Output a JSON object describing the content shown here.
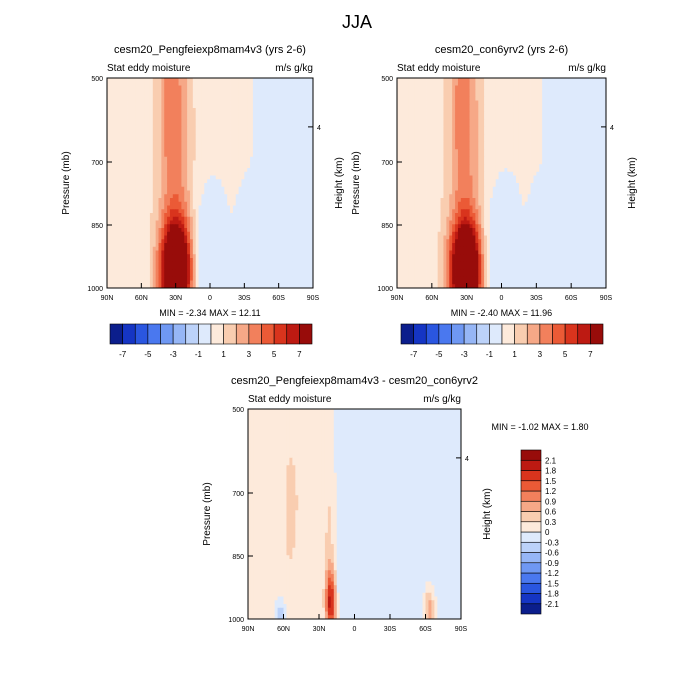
{
  "main_title": "JJA",
  "chart_data": [
    {
      "type": "heatmap",
      "title": "cesm20_Pengfeiexp8mam4v3 (yrs 2-6)",
      "left_string": "Stat eddy moisture",
      "right_string": "m/s g/kg",
      "ylabel": "Pressure (mb)",
      "ylabel_right": "Height (km)",
      "y_ticks": [
        "500",
        "700",
        "850",
        "1000"
      ],
      "right_ticks": [
        "4"
      ],
      "x_ticks": [
        "90N",
        "60N",
        "30N",
        "0",
        "30S",
        "60S",
        "90S"
      ],
      "stats": "MIN =  -2.34  MAX =  12.11",
      "min": -2.34,
      "max": 12.11,
      "levels": [
        -8,
        -7,
        -6,
        -5,
        -4,
        -3,
        -2,
        -1,
        0,
        1,
        2,
        3,
        4,
        5,
        6,
        7,
        8
      ],
      "colorbar_labels": [
        "-7",
        "-5",
        "-3",
        "-1",
        "1",
        "3",
        "5",
        "7"
      ],
      "features": [
        {
          "lat": 30,
          "p": 960,
          "dlat": 9,
          "dp": 80,
          "value": 12.11
        },
        {
          "lat": 28,
          "p": 650,
          "dlat": 10,
          "dp": 320,
          "value": 2.8
        },
        {
          "lat": 36,
          "p": 560,
          "dlat": 6,
          "dp": 170,
          "value": 1.3
        },
        {
          "lat": 48,
          "p": 720,
          "dlat": 12,
          "dp": 500,
          "value": 0.7
        },
        {
          "lat": 8,
          "p": 930,
          "dlat": 6,
          "dp": 90,
          "value": -1.3
        },
        {
          "lat": -35,
          "p": 980,
          "dlat": 5,
          "dp": 45,
          "value": -0.9
        },
        {
          "lat": -80,
          "p": 760,
          "dlat": 7,
          "dp": 360,
          "value": -0.7
        }
      ]
    },
    {
      "type": "heatmap",
      "title": "cesm20_con6yrv2 (yrs 2-6)",
      "left_string": "Stat eddy moisture",
      "right_string": "m/s g/kg",
      "ylabel": "Pressure (mb)",
      "ylabel_right": "Height (km)",
      "y_ticks": [
        "500",
        "700",
        "850",
        "1000"
      ],
      "right_ticks": [
        "4"
      ],
      "x_ticks": [
        "90N",
        "60N",
        "30N",
        "0",
        "30S",
        "60S",
        "90S"
      ],
      "stats": "MIN =  -2.40  MAX =  11.96",
      "min": -2.4,
      "max": 11.96,
      "levels": [
        -8,
        -7,
        -6,
        -5,
        -4,
        -3,
        -2,
        -1,
        0,
        1,
        2,
        3,
        4,
        5,
        6,
        7,
        8
      ],
      "colorbar_labels": [
        "-7",
        "-5",
        "-3",
        "-1",
        "1",
        "3",
        "5",
        "7"
      ],
      "features": [
        {
          "lat": 31,
          "p": 960,
          "dlat": 9,
          "dp": 80,
          "value": 11.96
        },
        {
          "lat": 29,
          "p": 650,
          "dlat": 10,
          "dp": 320,
          "value": 2.7
        },
        {
          "lat": 36,
          "p": 560,
          "dlat": 6,
          "dp": 170,
          "value": 1.2
        },
        {
          "lat": 50,
          "p": 720,
          "dlat": 12,
          "dp": 500,
          "value": 0.7
        },
        {
          "lat": 8,
          "p": 930,
          "dlat": 6,
          "dp": 90,
          "value": -1.4
        },
        {
          "lat": -35,
          "p": 980,
          "dlat": 5,
          "dp": 45,
          "value": -0.9
        },
        {
          "lat": -80,
          "p": 760,
          "dlat": 7,
          "dp": 360,
          "value": -0.7
        }
      ]
    },
    {
      "type": "heatmap",
      "title": "cesm20_Pengfeiexp8mam4v3 - cesm20_con6yrv2",
      "left_string": "Stat eddy moisture",
      "right_string": "m/s g/kg",
      "ylabel": "Pressure (mb)",
      "ylabel_right": "Height (km)",
      "y_ticks": [
        "500",
        "700",
        "850",
        "1000"
      ],
      "right_ticks": [
        "4"
      ],
      "x_ticks": [
        "90N",
        "60N",
        "30N",
        "0",
        "30S",
        "60S",
        "90S"
      ],
      "stats": "MIN =  -1.02  MAX =   1.80",
      "min": -1.02,
      "max": 1.8,
      "levels": [
        -2.4,
        -2.1,
        -1.8,
        -1.5,
        -1.2,
        -0.9,
        -0.6,
        -0.3,
        0,
        0.3,
        0.6,
        0.9,
        1.2,
        1.5,
        1.8,
        2.1,
        2.4
      ],
      "colorbar_labels": [
        "2.1",
        "1.8",
        "1.5",
        "1.2",
        "0.9",
        "0.6",
        "0.3",
        "0",
        "-0.3",
        "-0.6",
        "-0.9",
        "-1.2",
        "-1.5",
        "-1.8",
        "-2.1"
      ],
      "features": [
        {
          "lat": 20,
          "p": 960,
          "dlat": 3,
          "dp": 55,
          "value": 1.8
        },
        {
          "lat": 21,
          "p": 820,
          "dlat": 4,
          "dp": 160,
          "value": 0.45
        },
        {
          "lat": 58,
          "p": 750,
          "dlat": 7,
          "dp": 260,
          "value": 0.25
        },
        {
          "lat": 45,
          "p": 700,
          "dlat": 8,
          "dp": 320,
          "value": 0.22
        },
        {
          "lat": 78,
          "p": 720,
          "dlat": 6,
          "dp": 320,
          "value": 0.18
        },
        {
          "lat": 10,
          "p": 860,
          "dlat": 8,
          "dp": 200,
          "value": -0.3
        },
        {
          "lat": -16,
          "p": 780,
          "dlat": 5,
          "dp": 300,
          "value": -0.25
        },
        {
          "lat": -60,
          "p": 780,
          "dlat": 8,
          "dp": 350,
          "value": -0.2
        },
        {
          "lat": -63,
          "p": 980,
          "dlat": 3,
          "dp": 40,
          "value": 0.9
        },
        {
          "lat": 62,
          "p": 990,
          "dlat": 3,
          "dp": 30,
          "value": -0.6
        }
      ]
    }
  ],
  "colormap": [
    "#0b1e8c",
    "#1535c4",
    "#2a56e0",
    "#4a78ef",
    "#6f98f3",
    "#96b6f6",
    "#bcd2f9",
    "#deeafc",
    "#fdeadb",
    "#f9cdb0",
    "#f6a887",
    "#f2805c",
    "#eb5a36",
    "#d9341d",
    "#bd1a12",
    "#980c0a"
  ]
}
